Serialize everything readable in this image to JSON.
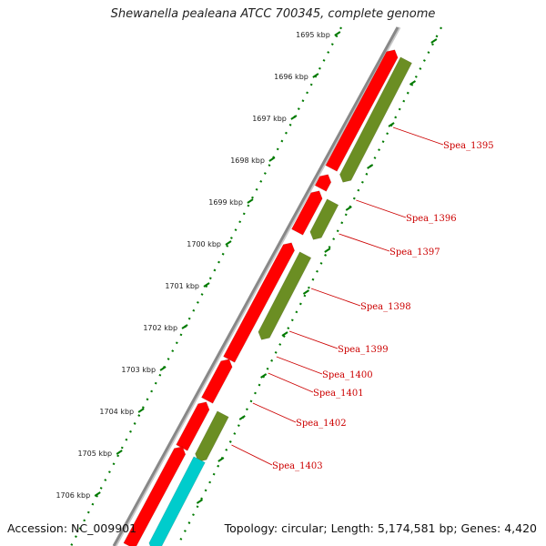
{
  "title": "Shewanella pealeana ATCC 700345, complete genome",
  "footer": {
    "accession": "Accession: NC_009901",
    "summary": "Topology: circular; Length: 5,174,581 bp; Genes: 4,420"
  },
  "colors": {
    "backbone": "#888888",
    "ticks": "#007a00",
    "forward_gene": "#ff0000",
    "reverse_gene": "#6b8e23",
    "rna_gene": "#00cccc",
    "label": "#cc0000"
  },
  "ticks": [
    {
      "label": "1695 kbp",
      "position_kbp": 1695
    },
    {
      "label": "1696 kbp",
      "position_kbp": 1696
    },
    {
      "label": "1697 kbp",
      "position_kbp": 1697
    },
    {
      "label": "1698 kbp",
      "position_kbp": 1698
    },
    {
      "label": "1699 kbp",
      "position_kbp": 1699
    },
    {
      "label": "1700 kbp",
      "position_kbp": 1700
    },
    {
      "label": "1701 kbp",
      "position_kbp": 1701
    },
    {
      "label": "1702 kbp",
      "position_kbp": 1702
    },
    {
      "label": "1703 kbp",
      "position_kbp": 1703
    },
    {
      "label": "1704 kbp",
      "position_kbp": 1704
    },
    {
      "label": "1705 kbp",
      "position_kbp": 1705
    },
    {
      "label": "1706 kbp",
      "position_kbp": 1706
    }
  ],
  "gene_labels": [
    "Spea_1395",
    "Spea_1396",
    "Spea_1397",
    "Spea_1398",
    "Spea_1399",
    "Spea_1400",
    "Spea_1401",
    "Spea_1402",
    "Spea_1403"
  ]
}
